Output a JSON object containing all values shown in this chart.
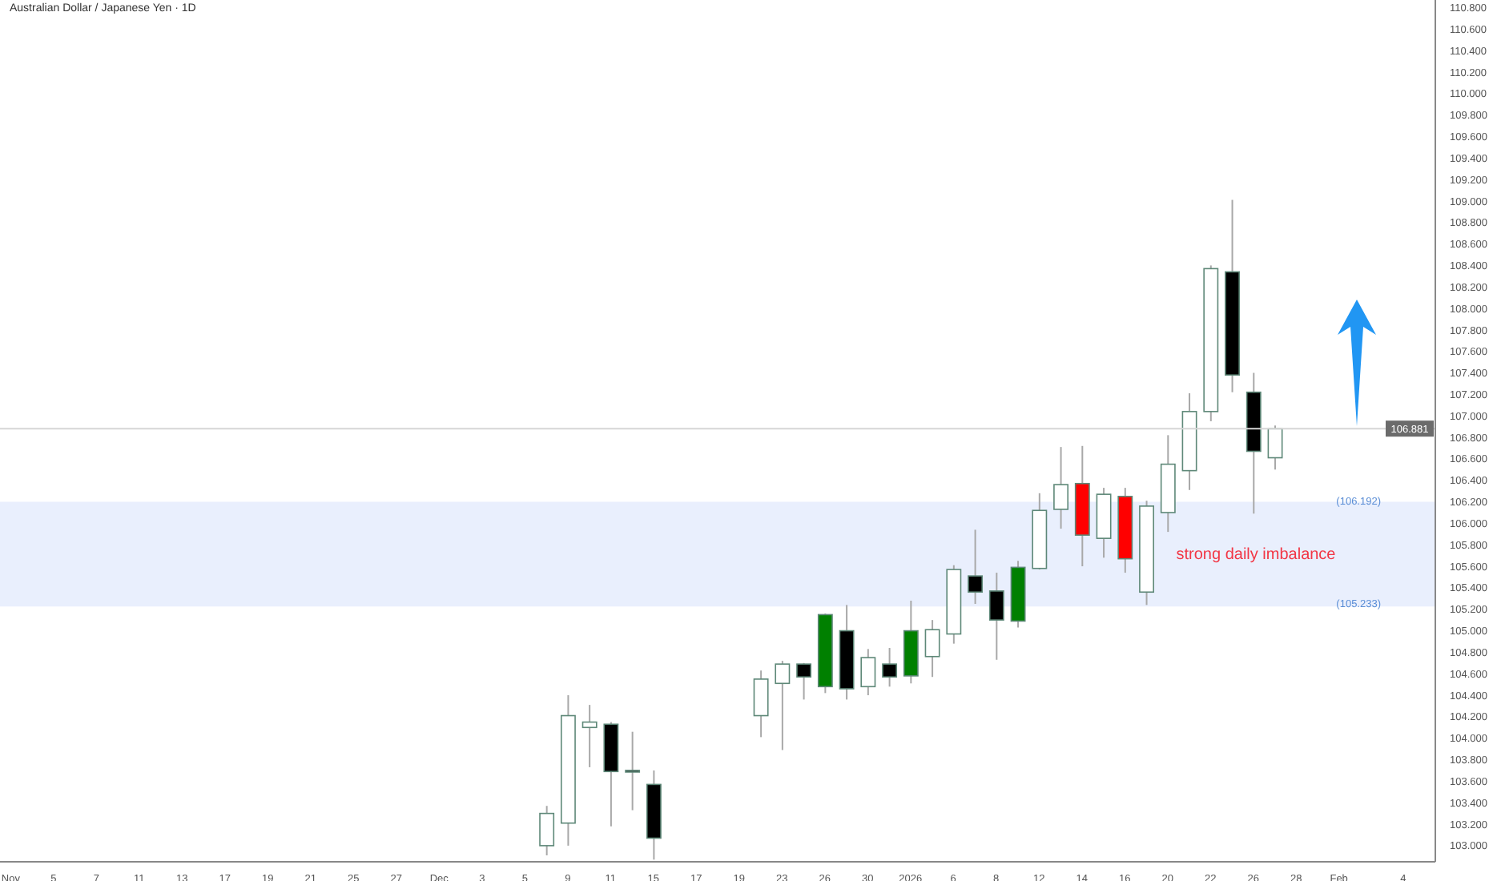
{
  "chart_data": {
    "type": "candlestick",
    "title": "Australian Dollar / Japanese Yen · 1D",
    "categories": [
      "Nov",
      null,
      "5",
      null,
      "7",
      null,
      "11",
      null,
      "13",
      null,
      "17",
      null,
      "19",
      null,
      "21",
      null,
      "25",
      null,
      "27",
      null,
      "Dec",
      null,
      "3",
      null,
      "5",
      null,
      "9",
      null,
      "11",
      null,
      "15",
      null,
      "17",
      null,
      "19",
      null,
      "23",
      null,
      "26",
      null,
      "30",
      null,
      "2026",
      null,
      "6",
      null,
      "8",
      null,
      "12",
      null,
      "14",
      null,
      "16",
      null,
      "20",
      null,
      "22",
      null,
      "26",
      null,
      "28",
      null,
      "Feb",
      null,
      null,
      "4",
      null
    ],
    "ohlc": [
      null,
      null,
      null,
      null,
      null,
      null,
      null,
      null,
      null,
      null,
      null,
      null,
      null,
      null,
      null,
      null,
      null,
      null,
      null,
      null,
      null,
      null,
      null,
      null,
      null,
      [
        103.0,
        103.37,
        102.91,
        103.3
      ],
      [
        103.21,
        104.4,
        103.0,
        104.21
      ],
      [
        104.1,
        104.31,
        103.73,
        104.15
      ],
      [
        104.13,
        104.15,
        103.18,
        103.69
      ],
      [
        103.7,
        104.06,
        103.33,
        103.69
      ],
      [
        103.57,
        103.7,
        102.87,
        103.07
      ],
      null,
      null,
      null,
      null,
      [
        104.21,
        104.63,
        104.01,
        104.55
      ],
      [
        104.51,
        104.72,
        103.89,
        104.69
      ],
      [
        104.69,
        104.7,
        104.36,
        104.57
      ],
      [
        104.48,
        105.16,
        104.42,
        105.15
      ],
      [
        105.0,
        105.24,
        104.36,
        104.46
      ],
      [
        104.48,
        104.83,
        104.4,
        104.75
      ],
      [
        104.69,
        104.84,
        104.48,
        104.57
      ],
      [
        104.58,
        105.28,
        104.51,
        105.0
      ],
      [
        104.76,
        105.1,
        104.57,
        105.01
      ],
      [
        104.97,
        105.61,
        104.88,
        105.57
      ],
      [
        105.51,
        105.94,
        105.25,
        105.36
      ],
      [
        105.37,
        105.54,
        104.73,
        105.1
      ],
      [
        105.09,
        105.65,
        105.03,
        105.59
      ],
      [
        105.58,
        106.28,
        105.57,
        106.12
      ],
      [
        106.13,
        106.71,
        105.95,
        106.36
      ],
      [
        106.37,
        106.72,
        105.6,
        105.89
      ],
      [
        105.86,
        106.33,
        105.68,
        106.27
      ],
      [
        106.25,
        106.33,
        105.54,
        105.67
      ],
      [
        105.36,
        106.21,
        105.24,
        106.16
      ],
      [
        106.1,
        106.82,
        105.92,
        106.55
      ],
      [
        106.49,
        107.21,
        106.31,
        107.04
      ],
      [
        107.04,
        108.4,
        106.95,
        108.37
      ],
      [
        108.34,
        109.01,
        107.22,
        107.38
      ],
      [
        107.22,
        107.4,
        106.09,
        106.67
      ],
      [
        106.61,
        106.91,
        106.5,
        106.88
      ],
      null,
      null,
      null,
      null,
      null,
      null,
      null
    ],
    "colors": [
      null,
      null,
      null,
      null,
      null,
      null,
      null,
      null,
      null,
      null,
      null,
      null,
      null,
      null,
      null,
      null,
      null,
      null,
      null,
      null,
      null,
      null,
      null,
      null,
      null,
      "#ffffff",
      "#ffffff",
      "#ffffff",
      "#000000",
      "#000000",
      "#000000",
      null,
      null,
      null,
      null,
      "#ffffff",
      "#ffffff",
      "#000000",
      "#008000",
      "#000000",
      "#ffffff",
      "#000000",
      "#008000",
      "#ffffff",
      "#ffffff",
      "#000000",
      "#000000",
      "#008000",
      "#ffffff",
      "#ffffff",
      "#ff0000",
      "#ffffff",
      "#ff0000",
      "#ffffff",
      "#ffffff",
      "#ffffff",
      "#ffffff",
      "#000000",
      "#000000",
      "#ffffff",
      null,
      null,
      null,
      null,
      null,
      null,
      null
    ],
    "ylim": [
      102.85,
      110.87
    ],
    "yticks": [
      {
        "value": 103.0,
        "label": "103.000"
      },
      {
        "value": 103.2,
        "label": "103.200"
      },
      {
        "value": 103.4,
        "label": "103.400"
      },
      {
        "value": 103.6,
        "label": "103.600"
      },
      {
        "value": 103.8,
        "label": "103.800"
      },
      {
        "value": 104.0,
        "label": "104.000"
      },
      {
        "value": 104.2,
        "label": "104.200"
      },
      {
        "value": 104.4,
        "label": "104.400"
      },
      {
        "value": 104.6,
        "label": "104.600"
      },
      {
        "value": 104.8,
        "label": "104.800"
      },
      {
        "value": 105.0,
        "label": "105.000"
      },
      {
        "value": 105.2,
        "label": "105.200"
      },
      {
        "value": 105.4,
        "label": "105.400"
      },
      {
        "value": 105.6,
        "label": "105.600"
      },
      {
        "value": 105.8,
        "label": "105.800"
      },
      {
        "value": 106.0,
        "label": "106.000"
      },
      {
        "value": 106.2,
        "label": "106.200"
      },
      {
        "value": 106.4,
        "label": "106.400"
      },
      {
        "value": 106.6,
        "label": "106.600"
      },
      {
        "value": 106.8,
        "label": "106.800"
      },
      {
        "value": 107.0,
        "label": "107.000"
      },
      {
        "value": 107.2,
        "label": "107.200"
      },
      {
        "value": 107.4,
        "label": "107.400"
      },
      {
        "value": 107.6,
        "label": "107.600"
      },
      {
        "value": 107.8,
        "label": "107.800"
      },
      {
        "value": 108.0,
        "label": "108.000"
      },
      {
        "value": 108.2,
        "label": "108.200"
      },
      {
        "value": 108.4,
        "label": "108.400"
      },
      {
        "value": 108.6,
        "label": "108.600"
      },
      {
        "value": 108.8,
        "label": "108.800"
      },
      {
        "value": 109.0,
        "label": "109.000"
      },
      {
        "value": 109.2,
        "label": "109.200"
      },
      {
        "value": 109.4,
        "label": "109.400"
      },
      {
        "value": 109.6,
        "label": "109.600"
      },
      {
        "value": 109.8,
        "label": "109.800"
      },
      {
        "value": 110.0,
        "label": "110.000"
      },
      {
        "value": 110.2,
        "label": "110.200"
      },
      {
        "value": 110.4,
        "label": "110.400"
      },
      {
        "value": 110.6,
        "label": "110.600"
      },
      {
        "value": 110.8,
        "label": "110.800"
      }
    ],
    "ref_lines": [
      {
        "axis": "y",
        "value": 106.881,
        "label": "106.881",
        "color": "#d6d6d6"
      }
    ],
    "bands": [
      {
        "axis": "y",
        "from": 105.233,
        "to": 106.192,
        "label": "strong daily imbalance",
        "color": "#e9effd"
      }
    ],
    "annotations": [
      {
        "text": "(106.192)",
        "y": 106.192
      },
      {
        "text": "(105.233)",
        "y": 105.233
      }
    ],
    "grid": false,
    "legend": false
  }
}
